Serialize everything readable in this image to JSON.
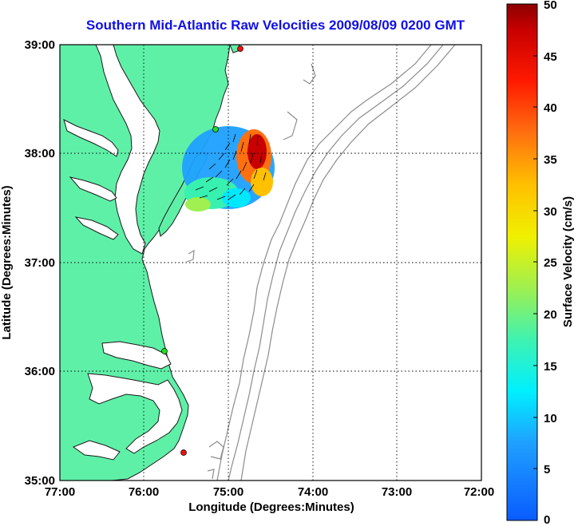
{
  "title": "Southern Mid-Atlantic Raw Velocities 2009/08/09 0200 GMT",
  "x_axis": {
    "label": "Longitude (Degrees:Minutes)",
    "ticks": [
      "77:00",
      "76:00",
      "75:00",
      "74:00",
      "73:00",
      "72:00"
    ]
  },
  "y_axis": {
    "label": "Latitude (Degrees:Minutes)",
    "ticks": [
      "39:00",
      "38:00",
      "37:00",
      "36:00",
      "35:00"
    ]
  },
  "colorbar": {
    "label": "Surface Velocity (cm/s)",
    "ticks": [
      "50",
      "45",
      "40",
      "35",
      "30",
      "25",
      "20",
      "15",
      "10",
      "5",
      "0"
    ],
    "min": 0,
    "max": 50
  },
  "grid": "dotted",
  "colors": {
    "land": "#5ff0a8",
    "title": "#1010e6",
    "bathymetry": "#8c8c8c",
    "site_active": "#22dd22",
    "site_inactive": "#ee1111"
  },
  "radar_sites": [
    {
      "status": "inactive"
    },
    {
      "status": "active"
    },
    {
      "status": "active"
    },
    {
      "status": "inactive"
    }
  ]
}
